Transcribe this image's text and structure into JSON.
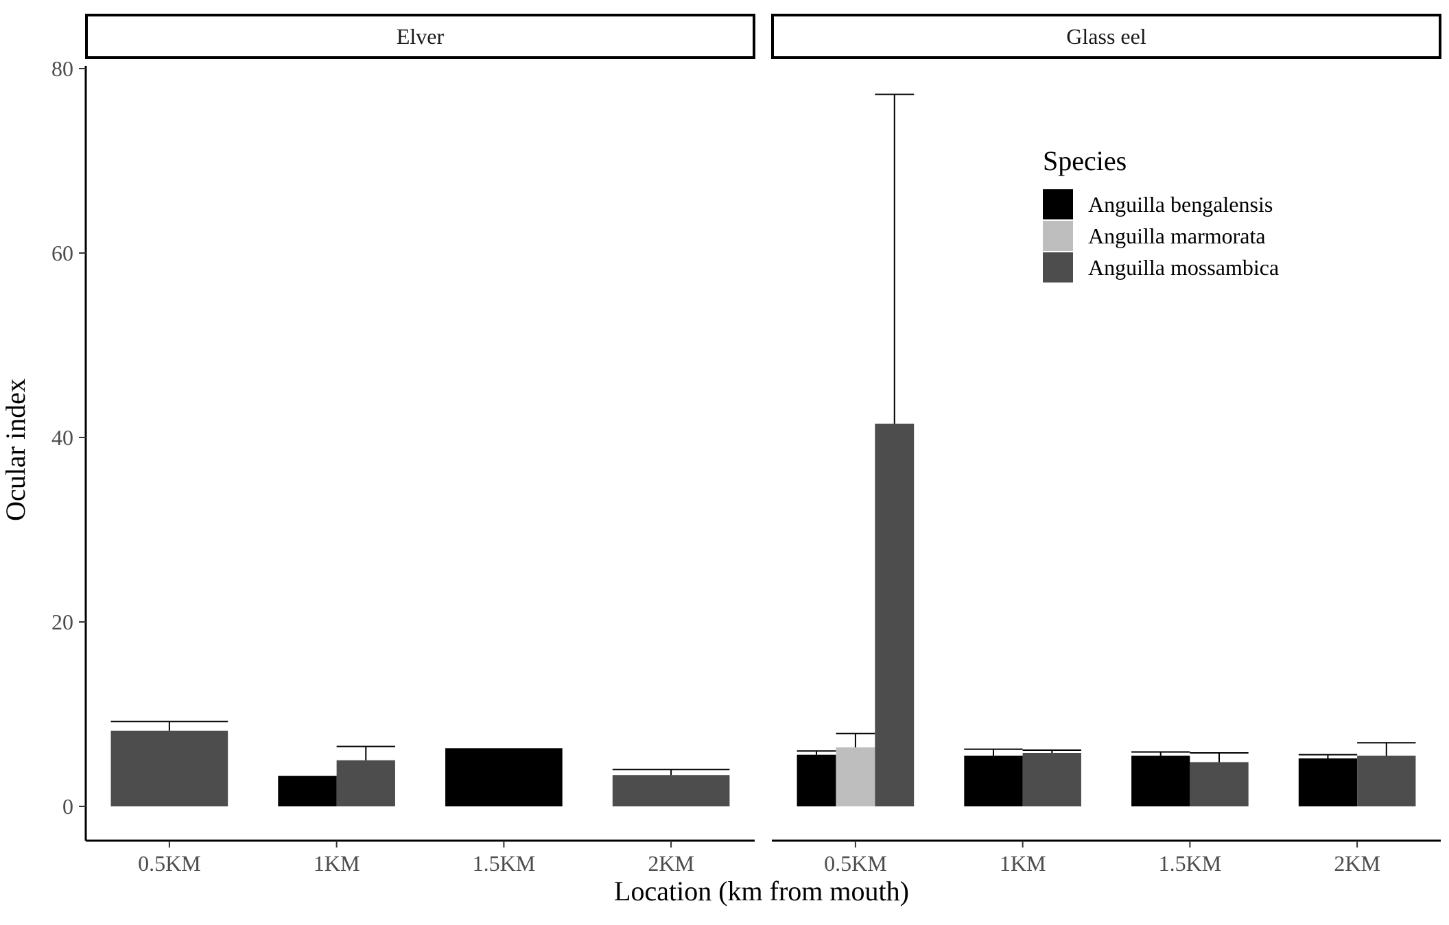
{
  "chart_data": {
    "type": "bar",
    "facets": [
      "Elver",
      "Glass eel"
    ],
    "categories": [
      "0.5KM",
      "1KM",
      "1.5KM",
      "2KM"
    ],
    "xlabel": "Location (km from mouth)",
    "ylabel": "Ocular index",
    "ylim": [
      0,
      80
    ],
    "yticks": [
      0,
      20,
      40,
      60,
      80
    ],
    "grid": false,
    "legend": {
      "title": "Species",
      "position": "top-right"
    },
    "series": [
      {
        "name": "Anguilla bengalensis",
        "color": "#000000"
      },
      {
        "name": "Anguilla marmorata",
        "color": "#bebebe"
      },
      {
        "name": "Anguilla mossambica",
        "color": "#4d4d4d"
      }
    ],
    "groups": [
      {
        "facet": "Elver",
        "category": "0.5KM",
        "bars": [
          {
            "series": "Anguilla mossambica",
            "value": 8.2,
            "error": 9.2
          }
        ]
      },
      {
        "facet": "Elver",
        "category": "1KM",
        "bars": [
          {
            "series": "Anguilla bengalensis",
            "value": 3.3,
            "error": null
          },
          {
            "series": "Anguilla mossambica",
            "value": 5.0,
            "error": 6.5
          }
        ]
      },
      {
        "facet": "Elver",
        "category": "1.5KM",
        "bars": [
          {
            "series": "Anguilla bengalensis",
            "value": 6.3,
            "error": null
          }
        ]
      },
      {
        "facet": "Elver",
        "category": "2KM",
        "bars": [
          {
            "series": "Anguilla mossambica",
            "value": 3.4,
            "error": 4.0
          }
        ]
      },
      {
        "facet": "Glass eel",
        "category": "0.5KM",
        "bars": [
          {
            "series": "Anguilla bengalensis",
            "value": 5.6,
            "error": 6.0
          },
          {
            "series": "Anguilla marmorata",
            "value": 6.4,
            "error": 7.9
          },
          {
            "series": "Anguilla mossambica",
            "value": 41.5,
            "error": 77.2
          }
        ]
      },
      {
        "facet": "Glass eel",
        "category": "1KM",
        "bars": [
          {
            "series": "Anguilla bengalensis",
            "value": 5.5,
            "error": 6.2
          },
          {
            "series": "Anguilla mossambica",
            "value": 5.8,
            "error": 6.1
          }
        ]
      },
      {
        "facet": "Glass eel",
        "category": "1.5KM",
        "bars": [
          {
            "series": "Anguilla bengalensis",
            "value": 5.5,
            "error": 5.9
          },
          {
            "series": "Anguilla mossambica",
            "value": 4.8,
            "error": 5.8
          }
        ]
      },
      {
        "facet": "Glass eel",
        "category": "2KM",
        "bars": [
          {
            "series": "Anguilla bengalensis",
            "value": 5.2,
            "error": 5.6
          },
          {
            "series": "Anguilla mossambica",
            "value": 5.5,
            "error": 6.9
          }
        ]
      }
    ]
  }
}
